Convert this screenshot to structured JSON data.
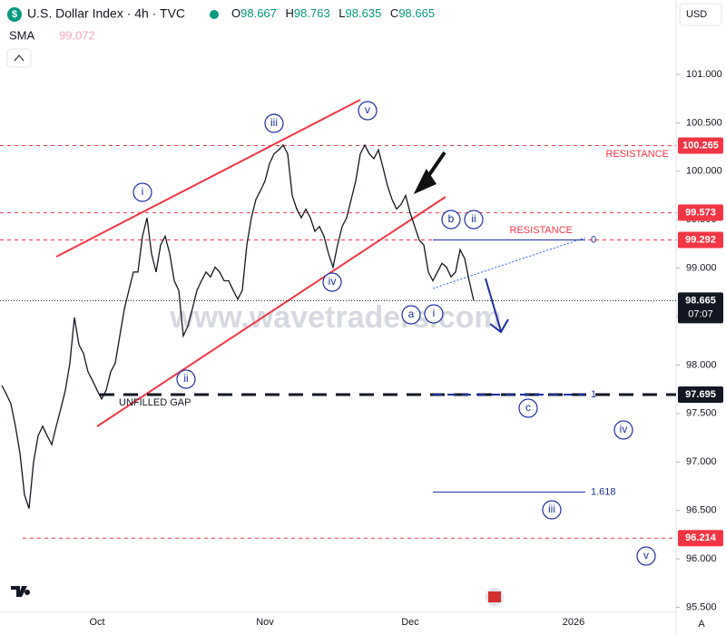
{
  "header": {
    "title": "U.S. Dollar Index · 4h · TVC",
    "ohlc": [
      {
        "label": "O",
        "value": 98.667
      },
      {
        "label": "H",
        "value": 98.763
      },
      {
        "label": "L",
        "value": 98.635
      },
      {
        "label": "C",
        "value": 98.665
      }
    ],
    "indicator": {
      "name": "SMA",
      "value": 99.072
    },
    "currency": "USD"
  },
  "chart_data": {
    "type": "line",
    "color": "#131722",
    "categories": [
      null,
      null,
      null,
      null,
      null,
      null,
      null,
      null,
      null,
      null,
      null,
      null,
      null,
      null,
      null,
      null,
      null,
      null,
      null,
      null,
      null,
      "Oct",
      null,
      null,
      null,
      null,
      null,
      null,
      null,
      null,
      null,
      null,
      null,
      null,
      null,
      null,
      null,
      null,
      null,
      null,
      null,
      null,
      null,
      null,
      null,
      null,
      null,
      null,
      null,
      null,
      null,
      null,
      null,
      null,
      null,
      null,
      null,
      null,
      "Nov",
      null,
      null,
      null,
      null,
      null,
      null,
      null,
      null,
      null,
      null,
      null,
      null,
      null,
      null,
      null,
      null,
      null,
      null,
      null,
      null,
      null,
      null,
      null,
      null,
      null,
      null,
      null,
      null,
      null,
      null,
      null,
      "Dec",
      null,
      null,
      null,
      null,
      null,
      null,
      null,
      null,
      null,
      null,
      null,
      null,
      null,
      null,
      null,
      null,
      null,
      null,
      null,
      null,
      null,
      null,
      null,
      null,
      null,
      null,
      null,
      null,
      null,
      null,
      null,
      null,
      null,
      null,
      null,
      "2026",
      null,
      null,
      null,
      null,
      null,
      null,
      null,
      null,
      null,
      null,
      null,
      null,
      null,
      null,
      null,
      null,
      null,
      null,
      null,
      null,
      null
    ],
    "values": [
      97.79,
      97.7,
      97.6,
      97.37,
      97.09,
      96.66,
      96.52,
      97.0,
      97.27,
      97.37,
      97.27,
      97.18,
      97.37,
      97.55,
      97.74,
      98.02,
      98.49,
      98.21,
      98.12,
      97.93,
      97.84,
      97.74,
      97.65,
      97.74,
      97.93,
      98.02,
      98.3,
      98.58,
      98.77,
      98.96,
      98.96,
      99.33,
      99.52,
      99.15,
      98.96,
      99.24,
      99.33,
      99.15,
      98.87,
      98.77,
      98.3,
      98.4,
      98.58,
      98.77,
      98.87,
      98.96,
      98.91,
      99.01,
      98.96,
      98.87,
      98.87,
      98.77,
      98.68,
      98.77,
      99.24,
      99.52,
      99.71,
      99.8,
      99.9,
      100.08,
      100.18,
      100.22,
      100.27,
      100.18,
      99.75,
      99.61,
      99.52,
      99.61,
      99.52,
      99.38,
      99.43,
      99.33,
      99.15,
      99.01,
      99.24,
      99.43,
      99.52,
      99.71,
      99.9,
      100.18,
      100.27,
      100.18,
      100.13,
      100.22,
      100.04,
      99.85,
      99.71,
      99.61,
      99.66,
      99.75,
      99.57,
      99.43,
      99.29,
      99.24,
      98.96,
      98.87,
      98.96,
      99.05,
      99.01,
      98.91,
      98.96,
      99.19,
      99.1,
      98.87,
      98.665,
      null,
      null,
      null,
      null,
      null,
      null,
      null,
      null,
      null,
      null,
      null,
      null,
      null,
      null,
      null,
      null,
      null,
      null,
      null,
      null,
      null,
      null,
      null,
      null,
      null,
      null,
      null,
      null,
      null,
      null,
      null,
      null,
      null,
      null,
      null,
      null,
      null,
      null,
      null,
      null,
      null,
      null,
      null
    ],
    "ylim": [
      95.448,
      101.768
    ],
    "yticks": [
      {
        "value": 95.5,
        "label": "95.500"
      },
      {
        "value": 96,
        "label": "96.000"
      },
      {
        "value": 96.5,
        "label": "96.500"
      },
      {
        "value": 97,
        "label": "97.000"
      },
      {
        "value": 97.5,
        "label": "97.500"
      },
      {
        "value": 98,
        "label": "98.000"
      },
      {
        "value": 98.5,
        "label": "98.500"
      },
      {
        "value": 99,
        "label": "99.000"
      },
      {
        "value": 99.5,
        "label": "99.500"
      },
      {
        "value": 100,
        "label": "100.000"
      },
      {
        "value": 100.5,
        "label": "100.500"
      },
      {
        "value": 101,
        "label": "101.000"
      }
    ],
    "levels": [
      {
        "value": 100.265,
        "color": "#f23645",
        "label": "RESISTANCE"
      },
      {
        "value": 99.573,
        "color": "#f23645"
      },
      {
        "value": 99.292,
        "color": "#f23645",
        "label": "RESISTANCE"
      },
      {
        "value": 97.695,
        "color": "#131722",
        "label": "UNFILLED GAP"
      },
      {
        "value": 96.214,
        "color": "#f23645"
      }
    ],
    "last_price": 98.665,
    "countdown": "07:07",
    "fib_levels": [
      {
        "ratio": 0,
        "price": 99.292
      },
      {
        "ratio": 1,
        "price": 97.695
      },
      {
        "ratio": 1.618,
        "price": 96.69
      }
    ],
    "fib_color": "#1e2fa0",
    "wave_labels": [
      "iii",
      "v",
      "i",
      "ii",
      "iv",
      "b",
      "ii",
      "a",
      "i",
      "c",
      "iv",
      "iii",
      "v"
    ],
    "watermark": "www.wavetraders.com"
  }
}
